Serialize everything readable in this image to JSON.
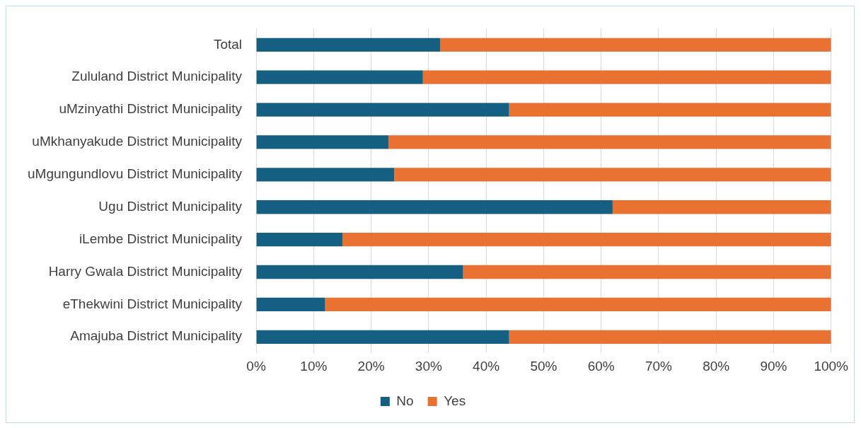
{
  "chart_data": {
    "type": "bar",
    "orientation": "horizontal",
    "stacked": true,
    "categories": [
      "Total",
      "Zululand District Municipality",
      "uMzinyathi District Municipality",
      "uMkhanyakude District Municipality",
      "uMgungundlovu District Municipality",
      "Ugu District Municipality",
      "iLembe District Municipality",
      "Harry Gwala District Municipality",
      "eThekwini District Municipality",
      "Amajuba District Municipality"
    ],
    "series": [
      {
        "name": "No",
        "color": "#156082",
        "values": [
          32,
          29,
          44,
          23,
          24,
          62,
          15,
          36,
          12,
          44
        ]
      },
      {
        "name": "Yes",
        "color": "#e97132",
        "values": [
          68,
          71,
          56,
          77,
          76,
          38,
          85,
          64,
          88,
          56
        ]
      }
    ],
    "xlim": [
      0,
      100
    ],
    "xticks": [
      {
        "value": 0,
        "label": "0%"
      },
      {
        "value": 10,
        "label": "10%"
      },
      {
        "value": 20,
        "label": "20%"
      },
      {
        "value": 30,
        "label": "30%"
      },
      {
        "value": 40,
        "label": "40%"
      },
      {
        "value": 50,
        "label": "50%"
      },
      {
        "value": 60,
        "label": "60%"
      },
      {
        "value": 70,
        "label": "70%"
      },
      {
        "value": 80,
        "label": "80%"
      },
      {
        "value": 90,
        "label": "90%"
      },
      {
        "value": 100,
        "label": "100%"
      }
    ],
    "grid": "x",
    "legend": "bottom"
  }
}
